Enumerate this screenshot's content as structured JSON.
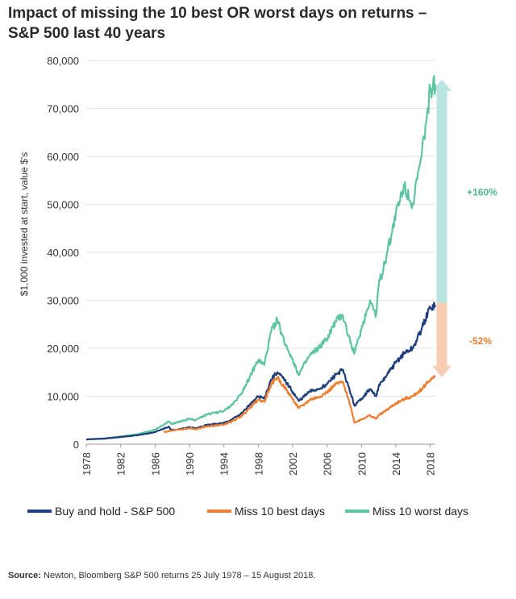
{
  "title_line1": "Impact of missing the 10 best OR worst days on returns –",
  "title_line2": "S&P 500 last 40 years",
  "source_label": "Source:",
  "source_text": "Newton, Bloomberg S&P 500 returns 25 July 1978 – 15 August 2018.",
  "colors": {
    "buy_hold": "#1f3e7c",
    "miss_best": "#ee7d31",
    "miss_worst": "#5fc4a0",
    "arrow_up": "#b9e5e1",
    "arrow_down": "#f8cdb4",
    "gain_text": "#4cba8e",
    "loss_text": "#ee7d31"
  },
  "annotations": {
    "gain": "+160%",
    "loss": "-52%"
  },
  "chart_data": {
    "type": "line",
    "title": "",
    "xlabel": "",
    "ylabel": "$1,000 invested at start, value $'s",
    "xlim": [
      1978,
      2018.6
    ],
    "ylim": [
      0,
      80000
    ],
    "x_ticks": [
      1978,
      1982,
      1986,
      1990,
      1994,
      1998,
      2002,
      2006,
      2010,
      2014,
      2018
    ],
    "y_ticks": [
      0,
      10000,
      20000,
      30000,
      40000,
      50000,
      60000,
      70000,
      80000
    ],
    "y_tick_labels": [
      "0",
      "10,000",
      "20,000",
      "30,000",
      "40,000",
      "50,000",
      "60,000",
      "70,000",
      "80,000"
    ],
    "grid": "horizontal",
    "legend_position": "bottom",
    "series": [
      {
        "name": "Buy and hold - S&P 500",
        "key": "buy_hold",
        "x": [
          1978,
          1980,
          1982,
          1984,
          1986,
          1987.6,
          1987.9,
          1990,
          1990.7,
          1992,
          1994,
          1995,
          1996,
          1997,
          1998,
          1998.7,
          1999.5,
          2000.2,
          2001,
          2001.8,
          2002.7,
          2003.5,
          2004,
          2005,
          2006,
          2007,
          2007.8,
          2008.5,
          2009.2,
          2010,
          2011,
          2011.7,
          2012,
          2013,
          2014,
          2015,
          2016,
          2017,
          2018,
          2018.6
        ],
        "y": [
          1000,
          1150,
          1500,
          1900,
          2500,
          3700,
          2900,
          3500,
          3300,
          4000,
          4400,
          5200,
          6300,
          8200,
          10000,
          9500,
          13500,
          15000,
          13500,
          11500,
          9000,
          10200,
          11000,
          11500,
          12500,
          14500,
          15500,
          12000,
          8000,
          9500,
          11500,
          10000,
          12000,
          14500,
          17000,
          19000,
          20000,
          24000,
          28500,
          29000
        ]
      },
      {
        "name": "Miss 10 best days",
        "key": "miss_best",
        "x": [
          1987,
          1987.9,
          1990,
          1990.7,
          1992,
          1994,
          1995,
          1996,
          1997,
          1998,
          1998.7,
          1999.5,
          2000.2,
          2001,
          2001.8,
          2002.7,
          2003.5,
          2004,
          2005,
          2006,
          2007,
          2007.8,
          2008.5,
          2009.2,
          2010,
          2011,
          2011.7,
          2012,
          2013,
          2014,
          2015,
          2016,
          2017,
          2018,
          2018.6
        ],
        "y": [
          2500,
          2800,
          3300,
          3100,
          3700,
          4100,
          4800,
          5800,
          7500,
          9300,
          8800,
          12500,
          14000,
          12000,
          10000,
          7500,
          8500,
          9300,
          9800,
          10800,
          12500,
          13000,
          9500,
          4500,
          5200,
          6000,
          5300,
          6000,
          7200,
          8500,
          9400,
          10000,
          11500,
          13500,
          14000
        ]
      },
      {
        "name": "Miss 10 worst days",
        "key": "miss_worst",
        "x": [
          1978,
          1980,
          1982,
          1984,
          1986,
          1987.6,
          1987.9,
          1990,
          1990.7,
          1992,
          1994,
          1995,
          1996,
          1997,
          1998,
          1998.7,
          1999.5,
          2000.2,
          2001,
          2001.8,
          2002.7,
          2003.5,
          2004,
          2005,
          2006,
          2007,
          2007.8,
          2008.5,
          2009.2,
          2010,
          2011,
          2011.7,
          2012,
          2013,
          2014,
          2015,
          2016,
          2017,
          2017.6,
          2018,
          2018.6
        ],
        "y": [
          1000,
          1200,
          1600,
          2100,
          3000,
          4700,
          4200,
          5300,
          5000,
          6200,
          6900,
          8300,
          10500,
          14000,
          17500,
          16500,
          23500,
          26000,
          21500,
          18500,
          14500,
          17000,
          18500,
          20000,
          22000,
          25500,
          27000,
          22500,
          19000,
          24000,
          30000,
          27000,
          33000,
          40000,
          48000,
          54000,
          50000,
          60000,
          68000,
          74000,
          75000
        ]
      }
    ]
  }
}
